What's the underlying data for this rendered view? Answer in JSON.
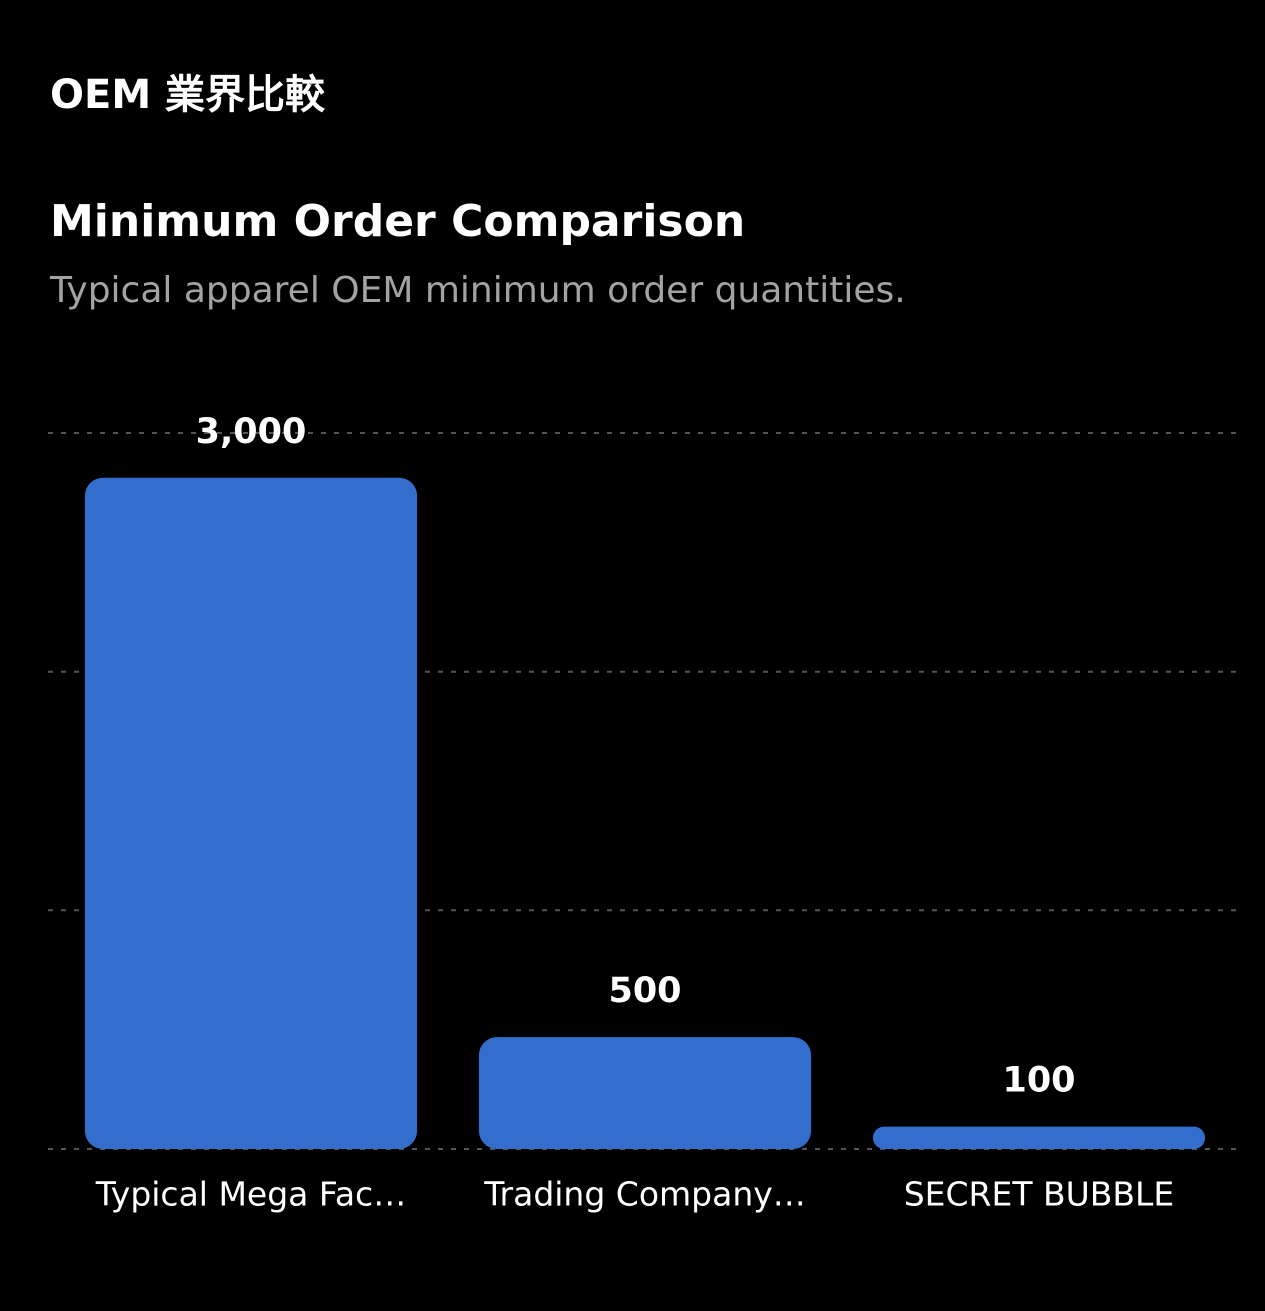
{
  "header": {
    "title": "OEM 業界比較"
  },
  "chart_data": {
    "type": "bar",
    "title": "Minimum Order Comparison",
    "subtitle": "Typical apparel OEM minimum order quantities.",
    "categories": [
      "Typical Mega Fac…",
      "Trading Company…",
      "SECRET BUBBLE"
    ],
    "values": [
      3000,
      500,
      100
    ],
    "value_labels": [
      "3,000",
      "500",
      "100"
    ],
    "color": "#336ecd",
    "ylim": [
      0,
      3200
    ],
    "yticks": [
      0,
      1067,
      2133,
      3200
    ],
    "ytick_labels": false,
    "grid": true
  }
}
